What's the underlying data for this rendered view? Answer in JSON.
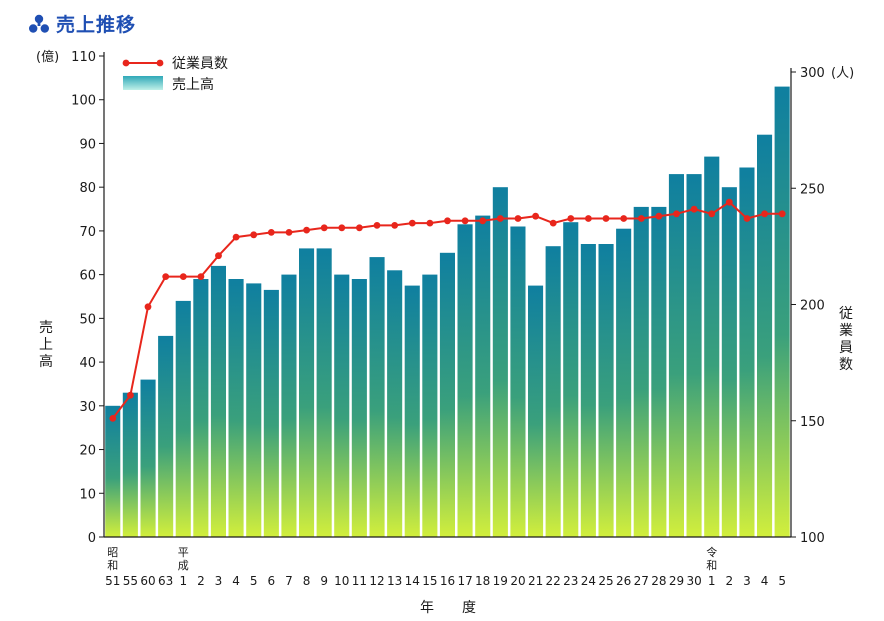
{
  "title": "売上推移",
  "colors": {
    "title": "#1f4fb3",
    "bar_top": "#0f7fa0",
    "bar_bottom": "#d2ef3c",
    "line": "#e8261c"
  },
  "chart_data": {
    "type": "bar+line",
    "categories": [
      "51",
      "55",
      "60",
      "63",
      "1",
      "2",
      "3",
      "4",
      "5",
      "6",
      "7",
      "8",
      "9",
      "10",
      "11",
      "12",
      "13",
      "14",
      "15",
      "16",
      "17",
      "18",
      "19",
      "20",
      "21",
      "22",
      "23",
      "24",
      "25",
      "26",
      "27",
      "28",
      "29",
      "30",
      "1",
      "2",
      "3",
      "4",
      "5"
    ],
    "era_markers": [
      {
        "index": 0,
        "label": "昭和"
      },
      {
        "index": 4,
        "label": "平成"
      },
      {
        "index": 34,
        "label": "令和"
      }
    ],
    "xlabel": "年　　度",
    "series": [
      {
        "name": "売上高",
        "type": "bar",
        "axis": "left",
        "values": [
          30,
          33,
          36,
          46,
          54,
          59,
          62,
          59,
          58,
          56.5,
          60,
          66,
          66,
          60,
          59,
          64,
          61,
          57.5,
          60,
          65,
          71.5,
          73.5,
          80,
          71,
          57.5,
          66.5,
          72,
          67,
          67,
          70.5,
          75.5,
          75.5,
          83,
          83,
          87,
          80,
          84.5,
          92,
          103
        ]
      },
      {
        "name": "従業員数",
        "type": "line",
        "axis": "right",
        "values": [
          151,
          161,
          199,
          212,
          212,
          212,
          221,
          229,
          230,
          231,
          231,
          232,
          233,
          233,
          233,
          234,
          234,
          235,
          235,
          236,
          236,
          236,
          237,
          237,
          238,
          235,
          237,
          237,
          237,
          237,
          237,
          238,
          239,
          241,
          239,
          244,
          237,
          239,
          239
        ]
      }
    ],
    "y_left": {
      "label": "売上高",
      "unit": "(億)",
      "min": 0,
      "max": 110,
      "ticks": [
        0,
        10,
        20,
        30,
        40,
        50,
        60,
        70,
        80,
        90,
        100,
        110
      ]
    },
    "y_right": {
      "label": "従業員数",
      "unit": "(人)",
      "min": 100,
      "max": 300,
      "ticks": [
        100,
        150,
        200,
        250,
        300
      ]
    },
    "legend": [
      "従業員数",
      "売上高"
    ],
    "legend_position": "top-left"
  }
}
